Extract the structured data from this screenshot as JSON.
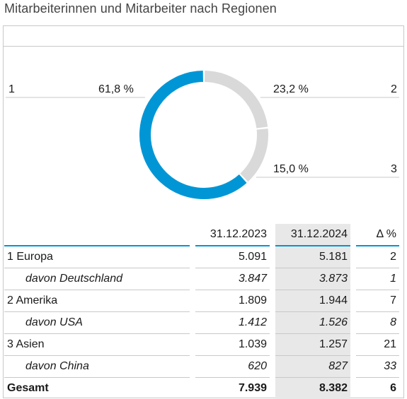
{
  "title": "Mitarbeiterinnen und Mitarbeiter nach Regionen",
  "colors": {
    "accent": "#0096d6",
    "rest": "#d9d9d9",
    "highlight_bg": "#e8e8e8",
    "rule": "#c8c8c8"
  },
  "chart_data": {
    "type": "pie",
    "variant": "donut",
    "slices": [
      {
        "index": "1",
        "value": 61.8,
        "label": "61,8 %",
        "color": "#0096d6"
      },
      {
        "index": "2",
        "value": 23.2,
        "label": "23,2 %",
        "color": "#d9d9d9"
      },
      {
        "index": "3",
        "value": 15.0,
        "label": "15,0 %",
        "color": "#d9d9d9"
      }
    ]
  },
  "table": {
    "columns": [
      "",
      "31.12.2023",
      "31.12.2024",
      "Δ %"
    ],
    "rows": [
      {
        "label": "1 Europa",
        "v2023": "5.091",
        "v2024": "5.181",
        "delta": "2",
        "sub": false
      },
      {
        "label": "davon Deutschland",
        "v2023": "3.847",
        "v2024": "3.873",
        "delta": "1",
        "sub": true
      },
      {
        "label": "2 Amerika",
        "v2023": "1.809",
        "v2024": "1.944",
        "delta": "7",
        "sub": false
      },
      {
        "label": "davon USA",
        "v2023": "1.412",
        "v2024": "1.526",
        "delta": "8",
        "sub": true
      },
      {
        "label": "3 Asien",
        "v2023": "1.039",
        "v2024": "1.257",
        "delta": "21",
        "sub": false
      },
      {
        "label": "davon China",
        "v2023": "620",
        "v2024": "827",
        "delta": "33",
        "sub": true
      },
      {
        "label": "Gesamt",
        "v2023": "7.939",
        "v2024": "8.382",
        "delta": "6",
        "sub": false
      }
    ]
  }
}
